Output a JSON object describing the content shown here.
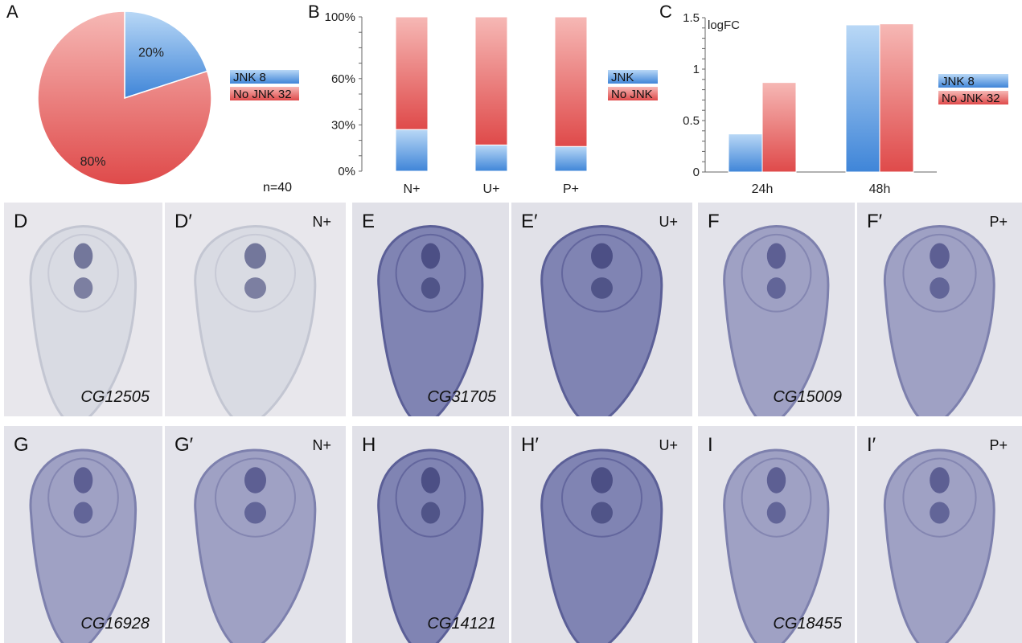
{
  "chart_data": [
    {
      "id": "A",
      "type": "pie",
      "labels": [
        "JNK",
        "No JNK"
      ],
      "values": [
        20,
        80
      ],
      "value_labels": [
        "20%",
        "80%"
      ],
      "legend": [
        {
          "label": "JNK 8",
          "color": "#3f85d8"
        },
        {
          "label": "No JNK 32",
          "color": "#df4a4a"
        }
      ],
      "legend_position": "right",
      "note": "n=40"
    },
    {
      "id": "B",
      "type": "bar",
      "stacked": true,
      "categories": [
        "N+",
        "U+",
        "P+"
      ],
      "series": [
        {
          "name": "JNK",
          "values": [
            27,
            17,
            16
          ],
          "color": "#3f85d8"
        },
        {
          "name": "No JNK",
          "values": [
            73,
            83,
            84
          ],
          "color": "#df4a4a"
        }
      ],
      "ytick_labels": [
        "0%",
        "30%",
        "60%",
        "100%"
      ],
      "ytick_values": [
        0,
        30,
        60,
        100
      ],
      "ylim": [
        0,
        100
      ],
      "legend_position": "right"
    },
    {
      "id": "C",
      "type": "bar",
      "categories": [
        "24h",
        "48h"
      ],
      "series": [
        {
          "name": "JNK 8",
          "values": [
            0.37,
            1.43
          ],
          "color": "#3f85d8"
        },
        {
          "name": "No JNK 32",
          "values": [
            0.87,
            1.44
          ],
          "color": "#df4a4a"
        }
      ],
      "ylabel": "logFC",
      "yticks": [
        "0",
        "0.5",
        "1",
        "1.5"
      ],
      "ytick_values": [
        0,
        0.5,
        1,
        1.5
      ],
      "ylim": [
        0,
        1.5
      ],
      "legend_position": "right"
    }
  ],
  "panel_labels": {
    "a": "A",
    "b": "B",
    "c": "C"
  },
  "images": [
    {
      "letter": "D",
      "corner": "",
      "gene": "CG12505",
      "tone": "light"
    },
    {
      "letter": "D′",
      "corner": "N+",
      "gene": "",
      "tone": "light"
    },
    {
      "letter": "E",
      "corner": "",
      "gene": "CG31705",
      "tone": "dark"
    },
    {
      "letter": "E′",
      "corner": "U+",
      "gene": "",
      "tone": "dark"
    },
    {
      "letter": "F",
      "corner": "",
      "gene": "CG15009",
      "tone": "mid"
    },
    {
      "letter": "F′",
      "corner": "P+",
      "gene": "",
      "tone": "mid"
    },
    {
      "letter": "G",
      "corner": "",
      "gene": "CG16928",
      "tone": "mid"
    },
    {
      "letter": "G′",
      "corner": "N+",
      "gene": "",
      "tone": "mid"
    },
    {
      "letter": "H",
      "corner": "",
      "gene": "CG14121",
      "tone": "dark"
    },
    {
      "letter": "H′",
      "corner": "U+",
      "gene": "",
      "tone": "dark"
    },
    {
      "letter": "I",
      "corner": "",
      "gene": "CG18455",
      "tone": "mid"
    },
    {
      "letter": "I′",
      "corner": "P+",
      "gene": "",
      "tone": "mid"
    }
  ]
}
